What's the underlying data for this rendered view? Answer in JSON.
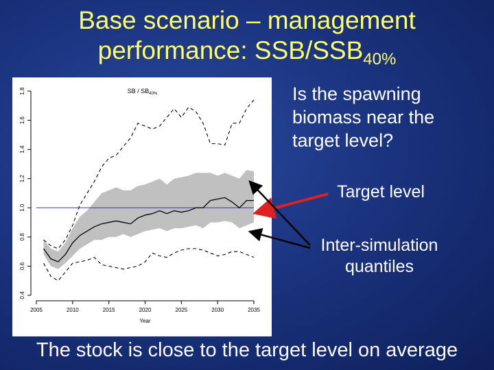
{
  "slide": {
    "title_line1": "Base scenario – management",
    "title_line2_main": "performance: SSB/SSB",
    "title_line2_sub": "40%",
    "question": "Is the spawning biomass near the target level?",
    "callout_target": "Target level",
    "callout_quantiles": "Inter-simulation quantiles",
    "footer": "The stock is close to the target level on average",
    "colors": {
      "title": "#ffff66",
      "text": "#ffffff",
      "red_arrow": "#e02020",
      "black_arrow": "#000000",
      "band": "#c0c0c0",
      "target_line": "#2233cc"
    }
  },
  "chart_data": {
    "type": "line",
    "title_main": "SB / SB",
    "title_sub": "40%",
    "xlabel": "Year",
    "ylabel": "",
    "xlim": [
      2005,
      2035
    ],
    "ylim": [
      0.4,
      1.8
    ],
    "xticks": [
      2005,
      2010,
      2015,
      2020,
      2025,
      2030,
      2035
    ],
    "yticks": [
      0.4,
      0.6,
      0.8,
      1.0,
      1.2,
      1.4,
      1.6,
      1.8
    ],
    "ytick_labels": [
      "0.4",
      "0.6",
      "0.8",
      "1.0",
      "1.2",
      "1.4",
      "1.6",
      "1.8"
    ],
    "target_level": 1.0,
    "x": [
      2006,
      2007,
      2008,
      2009,
      2010,
      2011,
      2012,
      2013,
      2014,
      2015,
      2016,
      2017,
      2018,
      2019,
      2020,
      2021,
      2022,
      2023,
      2024,
      2025,
      2026,
      2027,
      2028,
      2029,
      2030,
      2031,
      2032,
      2033,
      2034,
      2035
    ],
    "series": [
      {
        "style": "solid",
        "values": [
          0.72,
          0.65,
          0.63,
          0.68,
          0.76,
          0.81,
          0.84,
          0.87,
          0.89,
          0.9,
          0.91,
          0.9,
          0.89,
          0.93,
          0.95,
          0.96,
          0.98,
          0.96,
          0.98,
          0.97,
          0.98,
          1.0,
          1.0,
          1.05,
          1.06,
          1.07,
          1.04,
          1.0,
          1.05,
          1.05
        ]
      },
      {
        "style": "dashed",
        "values": [
          0.78,
          0.74,
          0.72,
          0.78,
          0.88,
          1.02,
          1.1,
          1.18,
          1.28,
          1.34,
          1.36,
          1.42,
          1.48,
          1.58,
          1.56,
          1.54,
          1.56,
          1.62,
          1.68,
          1.62,
          1.69,
          1.66,
          1.58,
          1.44,
          1.44,
          1.43,
          1.58,
          1.58,
          1.68,
          1.74
        ]
      },
      {
        "style": "dashed",
        "values": [
          0.62,
          0.53,
          0.5,
          0.56,
          0.62,
          0.63,
          0.64,
          0.66,
          0.61,
          0.6,
          0.59,
          0.58,
          0.59,
          0.6,
          0.63,
          0.69,
          0.67,
          0.66,
          0.69,
          0.71,
          0.72,
          0.72,
          0.71,
          0.69,
          0.67,
          0.68,
          0.7,
          0.7,
          0.68,
          0.66
        ]
      }
    ],
    "band": {
      "lower": [
        0.68,
        0.6,
        0.58,
        0.62,
        0.67,
        0.72,
        0.75,
        0.78,
        0.78,
        0.8,
        0.8,
        0.82,
        0.8,
        0.82,
        0.84,
        0.85,
        0.86,
        0.84,
        0.86,
        0.86,
        0.87,
        0.88,
        0.86,
        0.9,
        0.9,
        0.91,
        0.9,
        0.86,
        0.88,
        0.9
      ],
      "upper": [
        0.78,
        0.72,
        0.7,
        0.76,
        0.86,
        0.94,
        0.98,
        1.04,
        1.1,
        1.12,
        1.14,
        1.12,
        1.12,
        1.15,
        1.16,
        1.18,
        1.2,
        1.16,
        1.2,
        1.21,
        1.22,
        1.24,
        1.24,
        1.24,
        1.22,
        1.24,
        1.22,
        1.2,
        1.26,
        1.25
      ]
    }
  }
}
